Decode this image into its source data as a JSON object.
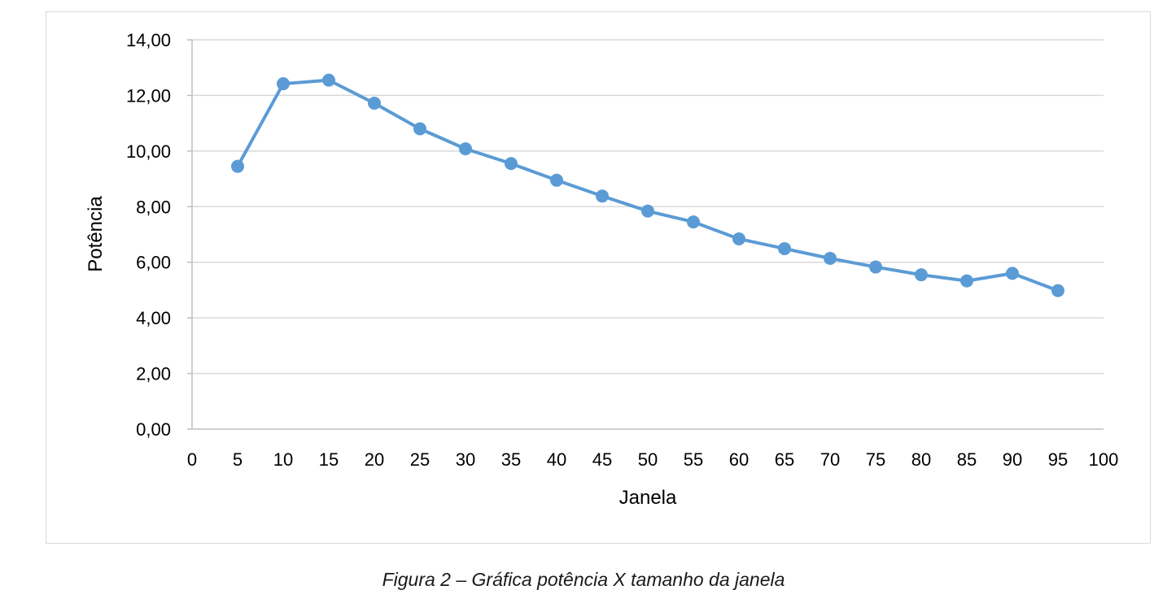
{
  "chart_data": {
    "type": "line",
    "title": "",
    "xlabel": "Janela",
    "ylabel": "Potência",
    "xlim": [
      0,
      100
    ],
    "ylim": [
      0,
      14
    ],
    "x_ticks": [
      "0",
      "5",
      "10",
      "15",
      "20",
      "25",
      "30",
      "35",
      "40",
      "45",
      "50",
      "55",
      "60",
      "65",
      "70",
      "75",
      "80",
      "85",
      "90",
      "95",
      "100"
    ],
    "y_ticks": [
      "0,00",
      "2,00",
      "4,00",
      "6,00",
      "8,00",
      "10,00",
      "12,00",
      "14,00"
    ],
    "grid": true,
    "legend": "none",
    "series": [
      {
        "name": "Potência",
        "color": "#5B9BD5",
        "x": [
          5,
          10,
          15,
          20,
          25,
          30,
          35,
          40,
          45,
          50,
          55,
          60,
          65,
          70,
          75,
          80,
          85,
          90,
          95
        ],
        "values": [
          9.45,
          12.42,
          12.55,
          11.72,
          10.8,
          10.08,
          9.55,
          8.95,
          8.38,
          7.84,
          7.45,
          6.84,
          6.49,
          6.14,
          5.83,
          5.55,
          5.33,
          5.6,
          4.98
        ]
      }
    ]
  },
  "caption": "Figura 2 – Gráfica potência X tamanho da janela"
}
